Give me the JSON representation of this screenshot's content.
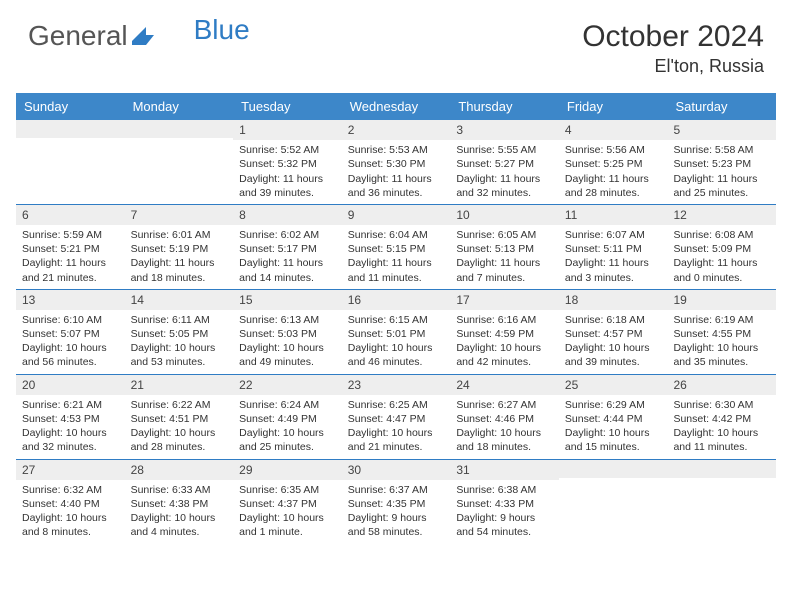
{
  "brand": {
    "part1": "General",
    "part2": "Blue"
  },
  "title": "October 2024",
  "location": "El'ton, Russia",
  "dayNames": [
    "Sunday",
    "Monday",
    "Tuesday",
    "Wednesday",
    "Thursday",
    "Friday",
    "Saturday"
  ],
  "colors": {
    "headerBg": "#3d87c9",
    "border": "#2f7cc4",
    "dayRowBg": "#eeeeee",
    "text": "#333333",
    "background": "#ffffff"
  },
  "weeks": [
    [
      {
        "n": "",
        "sunrise": "",
        "sunset": "",
        "daylight": ""
      },
      {
        "n": "",
        "sunrise": "",
        "sunset": "",
        "daylight": ""
      },
      {
        "n": "1",
        "sunrise": "Sunrise: 5:52 AM",
        "sunset": "Sunset: 5:32 PM",
        "daylight": "Daylight: 11 hours and 39 minutes."
      },
      {
        "n": "2",
        "sunrise": "Sunrise: 5:53 AM",
        "sunset": "Sunset: 5:30 PM",
        "daylight": "Daylight: 11 hours and 36 minutes."
      },
      {
        "n": "3",
        "sunrise": "Sunrise: 5:55 AM",
        "sunset": "Sunset: 5:27 PM",
        "daylight": "Daylight: 11 hours and 32 minutes."
      },
      {
        "n": "4",
        "sunrise": "Sunrise: 5:56 AM",
        "sunset": "Sunset: 5:25 PM",
        "daylight": "Daylight: 11 hours and 28 minutes."
      },
      {
        "n": "5",
        "sunrise": "Sunrise: 5:58 AM",
        "sunset": "Sunset: 5:23 PM",
        "daylight": "Daylight: 11 hours and 25 minutes."
      }
    ],
    [
      {
        "n": "6",
        "sunrise": "Sunrise: 5:59 AM",
        "sunset": "Sunset: 5:21 PM",
        "daylight": "Daylight: 11 hours and 21 minutes."
      },
      {
        "n": "7",
        "sunrise": "Sunrise: 6:01 AM",
        "sunset": "Sunset: 5:19 PM",
        "daylight": "Daylight: 11 hours and 18 minutes."
      },
      {
        "n": "8",
        "sunrise": "Sunrise: 6:02 AM",
        "sunset": "Sunset: 5:17 PM",
        "daylight": "Daylight: 11 hours and 14 minutes."
      },
      {
        "n": "9",
        "sunrise": "Sunrise: 6:04 AM",
        "sunset": "Sunset: 5:15 PM",
        "daylight": "Daylight: 11 hours and 11 minutes."
      },
      {
        "n": "10",
        "sunrise": "Sunrise: 6:05 AM",
        "sunset": "Sunset: 5:13 PM",
        "daylight": "Daylight: 11 hours and 7 minutes."
      },
      {
        "n": "11",
        "sunrise": "Sunrise: 6:07 AM",
        "sunset": "Sunset: 5:11 PM",
        "daylight": "Daylight: 11 hours and 3 minutes."
      },
      {
        "n": "12",
        "sunrise": "Sunrise: 6:08 AM",
        "sunset": "Sunset: 5:09 PM",
        "daylight": "Daylight: 11 hours and 0 minutes."
      }
    ],
    [
      {
        "n": "13",
        "sunrise": "Sunrise: 6:10 AM",
        "sunset": "Sunset: 5:07 PM",
        "daylight": "Daylight: 10 hours and 56 minutes."
      },
      {
        "n": "14",
        "sunrise": "Sunrise: 6:11 AM",
        "sunset": "Sunset: 5:05 PM",
        "daylight": "Daylight: 10 hours and 53 minutes."
      },
      {
        "n": "15",
        "sunrise": "Sunrise: 6:13 AM",
        "sunset": "Sunset: 5:03 PM",
        "daylight": "Daylight: 10 hours and 49 minutes."
      },
      {
        "n": "16",
        "sunrise": "Sunrise: 6:15 AM",
        "sunset": "Sunset: 5:01 PM",
        "daylight": "Daylight: 10 hours and 46 minutes."
      },
      {
        "n": "17",
        "sunrise": "Sunrise: 6:16 AM",
        "sunset": "Sunset: 4:59 PM",
        "daylight": "Daylight: 10 hours and 42 minutes."
      },
      {
        "n": "18",
        "sunrise": "Sunrise: 6:18 AM",
        "sunset": "Sunset: 4:57 PM",
        "daylight": "Daylight: 10 hours and 39 minutes."
      },
      {
        "n": "19",
        "sunrise": "Sunrise: 6:19 AM",
        "sunset": "Sunset: 4:55 PM",
        "daylight": "Daylight: 10 hours and 35 minutes."
      }
    ],
    [
      {
        "n": "20",
        "sunrise": "Sunrise: 6:21 AM",
        "sunset": "Sunset: 4:53 PM",
        "daylight": "Daylight: 10 hours and 32 minutes."
      },
      {
        "n": "21",
        "sunrise": "Sunrise: 6:22 AM",
        "sunset": "Sunset: 4:51 PM",
        "daylight": "Daylight: 10 hours and 28 minutes."
      },
      {
        "n": "22",
        "sunrise": "Sunrise: 6:24 AM",
        "sunset": "Sunset: 4:49 PM",
        "daylight": "Daylight: 10 hours and 25 minutes."
      },
      {
        "n": "23",
        "sunrise": "Sunrise: 6:25 AM",
        "sunset": "Sunset: 4:47 PM",
        "daylight": "Daylight: 10 hours and 21 minutes."
      },
      {
        "n": "24",
        "sunrise": "Sunrise: 6:27 AM",
        "sunset": "Sunset: 4:46 PM",
        "daylight": "Daylight: 10 hours and 18 minutes."
      },
      {
        "n": "25",
        "sunrise": "Sunrise: 6:29 AM",
        "sunset": "Sunset: 4:44 PM",
        "daylight": "Daylight: 10 hours and 15 minutes."
      },
      {
        "n": "26",
        "sunrise": "Sunrise: 6:30 AM",
        "sunset": "Sunset: 4:42 PM",
        "daylight": "Daylight: 10 hours and 11 minutes."
      }
    ],
    [
      {
        "n": "27",
        "sunrise": "Sunrise: 6:32 AM",
        "sunset": "Sunset: 4:40 PM",
        "daylight": "Daylight: 10 hours and 8 minutes."
      },
      {
        "n": "28",
        "sunrise": "Sunrise: 6:33 AM",
        "sunset": "Sunset: 4:38 PM",
        "daylight": "Daylight: 10 hours and 4 minutes."
      },
      {
        "n": "29",
        "sunrise": "Sunrise: 6:35 AM",
        "sunset": "Sunset: 4:37 PM",
        "daylight": "Daylight: 10 hours and 1 minute."
      },
      {
        "n": "30",
        "sunrise": "Sunrise: 6:37 AM",
        "sunset": "Sunset: 4:35 PM",
        "daylight": "Daylight: 9 hours and 58 minutes."
      },
      {
        "n": "31",
        "sunrise": "Sunrise: 6:38 AM",
        "sunset": "Sunset: 4:33 PM",
        "daylight": "Daylight: 9 hours and 54 minutes."
      },
      {
        "n": "",
        "sunrise": "",
        "sunset": "",
        "daylight": ""
      },
      {
        "n": "",
        "sunrise": "",
        "sunset": "",
        "daylight": ""
      }
    ]
  ]
}
